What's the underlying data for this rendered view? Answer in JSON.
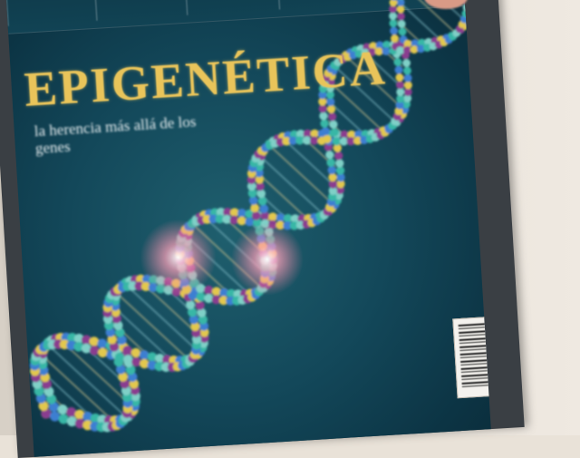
{
  "magazine": {
    "title": "EPIGENÉTICA",
    "subtitle": "la herencia más allá de los genes",
    "teasers": [
      "",
      "",
      "",
      ""
    ]
  },
  "colors": {
    "cover_background": "#13485a",
    "title_gold": "#e9c45a",
    "dna_palette": [
      "#e2c84e",
      "#39b7a6",
      "#8a3d8f",
      "#3d7fd1",
      "#7fd0c7"
    ],
    "glow": "#ff7fa0"
  },
  "icons": {
    "artwork": "dna-double-helix-illustration",
    "barcode": "barcode"
  }
}
